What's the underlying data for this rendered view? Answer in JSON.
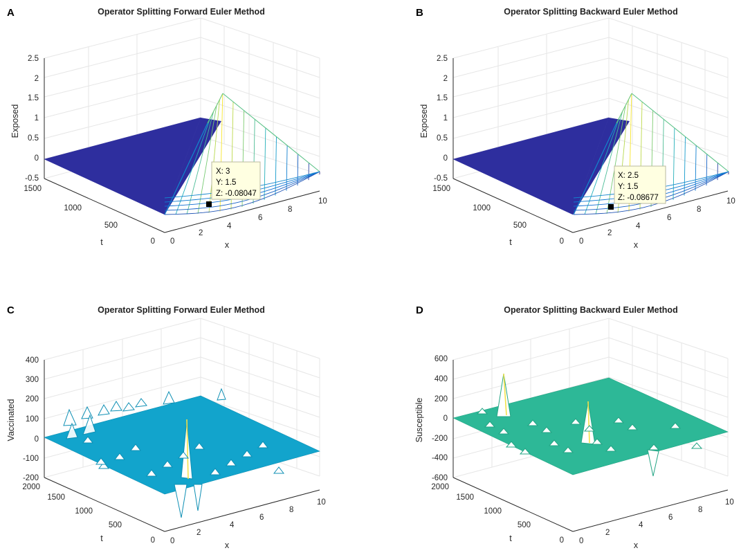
{
  "chart_data": [
    {
      "panel": "A",
      "type": "surface3d",
      "title": "Operator Splitting Forward Euler Method",
      "xlabel": "x",
      "ylabel": "t",
      "zlabel": "Exposed",
      "x_ticks": [
        "0",
        "2",
        "4",
        "6",
        "8",
        "10"
      ],
      "y_ticks": [
        "0",
        "500",
        "1000",
        "1500"
      ],
      "z_ticks": [
        "-0.5",
        "0",
        "0.5",
        "1",
        "1.5",
        "2",
        "2.5"
      ],
      "xlim": [
        0,
        10
      ],
      "ylim": [
        0,
        1500
      ],
      "zlim": [
        -0.5,
        2.5
      ],
      "datatip": {
        "x": "X: 3",
        "y": "Y: 1.5",
        "z": "Z: -0.08047"
      },
      "colors": {
        "surface": "#2E2E9E"
      }
    },
    {
      "panel": "B",
      "type": "surface3d",
      "title": "Operator Splitting Backward Euler Method",
      "xlabel": "x",
      "ylabel": "t",
      "zlabel": "Exposed",
      "x_ticks": [
        "0",
        "2",
        "4",
        "6",
        "8",
        "10"
      ],
      "y_ticks": [
        "0",
        "500",
        "1000",
        "1500"
      ],
      "z_ticks": [
        "-0.5",
        "0",
        "0.5",
        "1",
        "1.5",
        "2",
        "2.5"
      ],
      "xlim": [
        0,
        10
      ],
      "ylim": [
        0,
        1500
      ],
      "zlim": [
        -0.5,
        2.5
      ],
      "datatip": {
        "x": "X: 2.5",
        "y": "Y: 1.5",
        "z": "Z: -0.08677"
      },
      "colors": {
        "surface": "#2E2E9E"
      }
    },
    {
      "panel": "C",
      "type": "surface3d",
      "title": "Operator Splitting Forward Euler Method",
      "xlabel": "x",
      "ylabel": "t",
      "zlabel": "Vaccinated",
      "x_ticks": [
        "0",
        "2",
        "4",
        "6",
        "8",
        "10"
      ],
      "y_ticks": [
        "0",
        "500",
        "1000",
        "1500",
        "2000"
      ],
      "z_ticks": [
        "-200",
        "-100",
        "0",
        "100",
        "200",
        "300",
        "400"
      ],
      "xlim": [
        0,
        10
      ],
      "ylim": [
        0,
        2000
      ],
      "zlim": [
        -200,
        400
      ],
      "colors": {
        "surface": "#12A4CC"
      }
    },
    {
      "panel": "D",
      "type": "surface3d",
      "title": "Operator Splitting Backward Euler Method",
      "xlabel": "x",
      "ylabel": "t",
      "zlabel": "Susceptible",
      "x_ticks": [
        "0",
        "2",
        "4",
        "6",
        "8",
        "10"
      ],
      "y_ticks": [
        "0",
        "500",
        "1000",
        "1500",
        "2000"
      ],
      "z_ticks": [
        "-600",
        "-400",
        "-200",
        "0",
        "200",
        "400",
        "600"
      ],
      "xlim": [
        0,
        10
      ],
      "ylim": [
        0,
        2000
      ],
      "zlim": [
        -600,
        600
      ],
      "colors": {
        "surface": "#2DB897"
      }
    }
  ]
}
